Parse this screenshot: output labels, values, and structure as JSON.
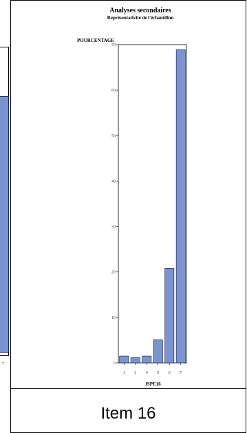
{
  "chart_data": {
    "type": "bar",
    "title": "Analyses secondaires",
    "subtitle": "Représentativité de l'échantillon",
    "ylabel": "POURCENTAGE",
    "xlabel": "JSPE16",
    "categories": [
      "1",
      "3",
      "4",
      "5",
      "6",
      "7"
    ],
    "values": [
      1.5,
      1.2,
      1.5,
      5.1,
      20.8,
      68.9
    ],
    "ylim": [
      0,
      70
    ],
    "yticks": [
      0,
      10,
      20,
      30,
      40,
      50,
      60,
      70
    ],
    "grid": false,
    "bar_color": "#7b93cf",
    "bar_edge_color": "#1c2a5a"
  },
  "left_panel": {
    "tick": "7"
  },
  "caption": "Item 16"
}
